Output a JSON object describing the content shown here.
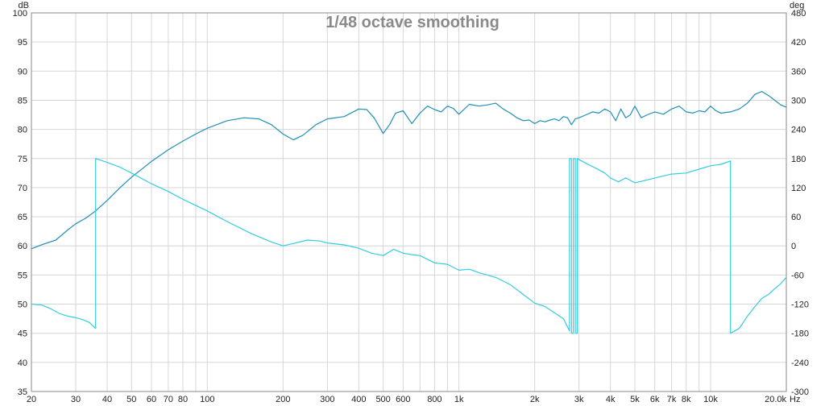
{
  "chart_data": {
    "type": "line",
    "title": "1/48 octave smoothing",
    "x_scale": "log",
    "xlim": [
      20,
      20000
    ],
    "ylim_left": [
      35,
      100
    ],
    "ylim_right": [
      -300,
      480
    ],
    "left_unit": "dB",
    "right_unit": "deg",
    "x_unit": "Hz",
    "grid": true,
    "colors": {
      "spl": "#1f8fb8",
      "phase": "#33cce0",
      "grid": "#d6d6d6",
      "axis": "#888888"
    },
    "x_ticks": [
      {
        "value": 20,
        "label": "20"
      },
      {
        "value": 30,
        "label": "30"
      },
      {
        "value": 40,
        "label": "40"
      },
      {
        "value": 50,
        "label": "50"
      },
      {
        "value": 60,
        "label": "60"
      },
      {
        "value": 70,
        "label": "70"
      },
      {
        "value": 80,
        "label": "80"
      },
      {
        "value": 100,
        "label": "100"
      },
      {
        "value": 200,
        "label": "200"
      },
      {
        "value": 300,
        "label": "300"
      },
      {
        "value": 400,
        "label": "400"
      },
      {
        "value": 500,
        "label": "500"
      },
      {
        "value": 600,
        "label": "600"
      },
      {
        "value": 800,
        "label": "800"
      },
      {
        "value": 1000,
        "label": "1k"
      },
      {
        "value": 2000,
        "label": "2k"
      },
      {
        "value": 3000,
        "label": "3k"
      },
      {
        "value": 4000,
        "label": "4k"
      },
      {
        "value": 5000,
        "label": "5k"
      },
      {
        "value": 6000,
        "label": "6k"
      },
      {
        "value": 7000,
        "label": "7k"
      },
      {
        "value": 8000,
        "label": "8k"
      },
      {
        "value": 10000,
        "label": "10k"
      },
      {
        "value": 20000,
        "label": "20.0k"
      }
    ],
    "y_left_ticks": [
      100,
      95,
      90,
      85,
      80,
      75,
      70,
      65,
      60,
      55,
      50,
      45,
      40,
      35
    ],
    "y_right_ticks": [
      480,
      420,
      360,
      300,
      240,
      180,
      120,
      60,
      0,
      -60,
      -120,
      -180,
      -240,
      -300
    ],
    "series": [
      {
        "axis": "left",
        "points": [
          [
            20,
            59.5
          ],
          [
            22,
            60.2
          ],
          [
            25,
            61.0
          ],
          [
            28,
            62.8
          ],
          [
            30,
            63.8
          ],
          [
            33,
            64.8
          ],
          [
            36,
            66.0
          ],
          [
            40,
            67.8
          ],
          [
            45,
            70.0
          ],
          [
            50,
            71.8
          ],
          [
            55,
            73.2
          ],
          [
            60,
            74.5
          ],
          [
            70,
            76.5
          ],
          [
            80,
            78.0
          ],
          [
            90,
            79.2
          ],
          [
            100,
            80.2
          ],
          [
            120,
            81.5
          ],
          [
            140,
            82.0
          ],
          [
            160,
            81.8
          ],
          [
            180,
            80.8
          ],
          [
            200,
            79.2
          ],
          [
            220,
            78.2
          ],
          [
            240,
            79.0
          ],
          [
            270,
            80.8
          ],
          [
            300,
            81.8
          ],
          [
            350,
            82.2
          ],
          [
            400,
            83.5
          ],
          [
            430,
            83.4
          ],
          [
            460,
            82.0
          ],
          [
            500,
            79.3
          ],
          [
            530,
            80.8
          ],
          [
            560,
            82.8
          ],
          [
            600,
            83.2
          ],
          [
            650,
            81.0
          ],
          [
            700,
            82.8
          ],
          [
            750,
            84.0
          ],
          [
            800,
            83.4
          ],
          [
            850,
            83.0
          ],
          [
            900,
            84.0
          ],
          [
            950,
            83.6
          ],
          [
            1000,
            82.6
          ],
          [
            1100,
            84.3
          ],
          [
            1200,
            84.0
          ],
          [
            1300,
            84.2
          ],
          [
            1400,
            84.5
          ],
          [
            1500,
            83.5
          ],
          [
            1600,
            82.8
          ],
          [
            1700,
            82.0
          ],
          [
            1800,
            81.5
          ],
          [
            1900,
            81.6
          ],
          [
            2000,
            81.0
          ],
          [
            2100,
            81.5
          ],
          [
            2200,
            81.3
          ],
          [
            2300,
            81.6
          ],
          [
            2400,
            81.8
          ],
          [
            2500,
            81.5
          ],
          [
            2600,
            82.2
          ],
          [
            2700,
            82.0
          ],
          [
            2800,
            80.8
          ],
          [
            2900,
            81.8
          ],
          [
            3000,
            82.0
          ],
          [
            3200,
            82.5
          ],
          [
            3400,
            83.0
          ],
          [
            3600,
            82.8
          ],
          [
            3800,
            83.5
          ],
          [
            4000,
            83.0
          ],
          [
            4200,
            81.5
          ],
          [
            4400,
            83.5
          ],
          [
            4600,
            82.0
          ],
          [
            4800,
            82.5
          ],
          [
            5000,
            84.0
          ],
          [
            5300,
            82.0
          ],
          [
            5600,
            82.5
          ],
          [
            6000,
            83.0
          ],
          [
            6500,
            82.6
          ],
          [
            7000,
            83.5
          ],
          [
            7500,
            84.0
          ],
          [
            8000,
            83.0
          ],
          [
            8500,
            82.8
          ],
          [
            9000,
            83.2
          ],
          [
            9500,
            83.0
          ],
          [
            10000,
            84.0
          ],
          [
            10500,
            83.2
          ],
          [
            11000,
            82.8
          ],
          [
            12000,
            83.0
          ],
          [
            13000,
            83.5
          ],
          [
            14000,
            84.5
          ],
          [
            15000,
            86.0
          ],
          [
            16000,
            86.5
          ],
          [
            17000,
            85.8
          ],
          [
            18000,
            85.0
          ],
          [
            19000,
            84.2
          ],
          [
            20000,
            83.8
          ]
        ]
      },
      {
        "axis": "right",
        "points": [
          [
            20,
            -120
          ],
          [
            22,
            -122
          ],
          [
            24,
            -130
          ],
          [
            26,
            -140
          ],
          [
            28,
            -145
          ],
          [
            30,
            -148
          ],
          [
            32,
            -152
          ],
          [
            34,
            -158
          ],
          [
            36,
            -170
          ],
          [
            36,
            180
          ],
          [
            40,
            172
          ],
          [
            45,
            162
          ],
          [
            50,
            150
          ],
          [
            60,
            128
          ],
          [
            70,
            112
          ],
          [
            80,
            96
          ],
          [
            100,
            72
          ],
          [
            120,
            50
          ],
          [
            150,
            25
          ],
          [
            180,
            8
          ],
          [
            200,
            0
          ],
          [
            220,
            5
          ],
          [
            250,
            12
          ],
          [
            280,
            10
          ],
          [
            300,
            6
          ],
          [
            350,
            2
          ],
          [
            400,
            -5
          ],
          [
            450,
            -15
          ],
          [
            500,
            -20
          ],
          [
            550,
            -7
          ],
          [
            600,
            -15
          ],
          [
            650,
            -18
          ],
          [
            700,
            -20
          ],
          [
            800,
            -35
          ],
          [
            900,
            -38
          ],
          [
            1000,
            -50
          ],
          [
            1100,
            -48
          ],
          [
            1200,
            -55
          ],
          [
            1400,
            -65
          ],
          [
            1600,
            -80
          ],
          [
            1800,
            -100
          ],
          [
            2000,
            -118
          ],
          [
            2200,
            -125
          ],
          [
            2400,
            -138
          ],
          [
            2600,
            -150
          ],
          [
            2750,
            -175
          ],
          [
            2750,
            180
          ],
          [
            2800,
            180
          ],
          [
            2800,
            -180
          ],
          [
            2850,
            -180
          ],
          [
            2850,
            180
          ],
          [
            2900,
            180
          ],
          [
            2900,
            -180
          ],
          [
            2950,
            -180
          ],
          [
            2950,
            180
          ],
          [
            3200,
            170
          ],
          [
            3500,
            160
          ],
          [
            3800,
            150
          ],
          [
            4000,
            140
          ],
          [
            4300,
            132
          ],
          [
            4600,
            140
          ],
          [
            5000,
            130
          ],
          [
            5500,
            135
          ],
          [
            6000,
            140
          ],
          [
            7000,
            148
          ],
          [
            8000,
            150
          ],
          [
            9000,
            158
          ],
          [
            10000,
            165
          ],
          [
            11000,
            168
          ],
          [
            12000,
            175
          ],
          [
            12000,
            -180
          ],
          [
            13000,
            -170
          ],
          [
            14000,
            -145
          ],
          [
            15000,
            -125
          ],
          [
            16000,
            -108
          ],
          [
            17000,
            -100
          ],
          [
            18000,
            -88
          ],
          [
            19000,
            -78
          ],
          [
            20000,
            -65
          ]
        ]
      }
    ]
  }
}
